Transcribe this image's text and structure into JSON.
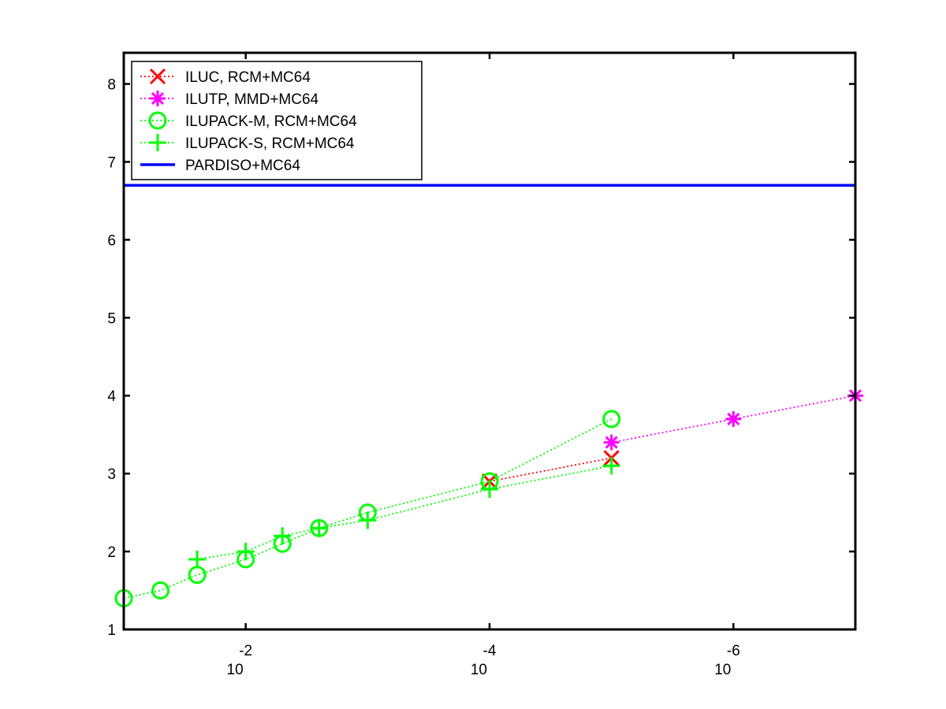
{
  "chart_data": {
    "type": "line",
    "title": "",
    "xlabel": "",
    "ylabel": "",
    "x_scale": "log",
    "x_reversed": true,
    "xlim": [
      0.1,
      1e-07
    ],
    "ylim": [
      1,
      8.4
    ],
    "grid": false,
    "legend_position": "top-left",
    "x_ticks": [
      {
        "value": 0.01,
        "base": "10",
        "exp": "-2"
      },
      {
        "value": 0.0001,
        "base": "10",
        "exp": "-4"
      },
      {
        "value": 1e-06,
        "base": "10",
        "exp": "-6"
      }
    ],
    "y_ticks": [
      {
        "value": 1,
        "label": "1"
      },
      {
        "value": 2,
        "label": "2"
      },
      {
        "value": 3,
        "label": "3"
      },
      {
        "value": 4,
        "label": "4"
      },
      {
        "value": 5,
        "label": "5"
      },
      {
        "value": 6,
        "label": "6"
      },
      {
        "value": 7,
        "label": "7"
      },
      {
        "value": 8,
        "label": "8"
      }
    ],
    "series": [
      {
        "name": "ILUC, RCM+MC64",
        "color": "#ff0000",
        "marker": "x",
        "line_style": "dotted",
        "points": [
          {
            "x": 0.0001,
            "y": 2.9
          },
          {
            "x": 1e-05,
            "y": 3.2
          }
        ]
      },
      {
        "name": "ILUTP, MMD+MC64",
        "color": "#ff00ff",
        "marker": "star",
        "line_style": "dotted",
        "points": [
          {
            "x": 1e-05,
            "y": 3.4
          },
          {
            "x": 1e-06,
            "y": 3.7
          },
          {
            "x": 1e-07,
            "y": 4.0
          }
        ]
      },
      {
        "name": "ILUPACK-M, RCM+MC64",
        "color": "#00ff00",
        "marker": "circle",
        "line_style": "dotted",
        "points": [
          {
            "x": 0.1,
            "y": 1.4
          },
          {
            "x": 0.05,
            "y": 1.5
          },
          {
            "x": 0.025,
            "y": 1.7
          },
          {
            "x": 0.01,
            "y": 1.9
          },
          {
            "x": 0.005,
            "y": 2.1
          },
          {
            "x": 0.0025,
            "y": 2.3
          },
          {
            "x": 0.001,
            "y": 2.5
          },
          {
            "x": 0.0001,
            "y": 2.9
          },
          {
            "x": 1e-05,
            "y": 3.7
          }
        ]
      },
      {
        "name": "ILUPACK-S, RCM+MC64",
        "color": "#00ff00",
        "marker": "plus",
        "line_style": "dotted",
        "points": [
          {
            "x": 0.025,
            "y": 1.9
          },
          {
            "x": 0.01,
            "y": 2.0
          },
          {
            "x": 0.005,
            "y": 2.2
          },
          {
            "x": 0.0025,
            "y": 2.3
          },
          {
            "x": 0.001,
            "y": 2.4
          },
          {
            "x": 0.0001,
            "y": 2.8
          },
          {
            "x": 1e-05,
            "y": 3.1
          }
        ]
      },
      {
        "name": "PARDISO+MC64",
        "color": "#0000ff",
        "marker": "none",
        "line_style": "solid",
        "points": [
          {
            "x": 0.1,
            "y": 6.7
          },
          {
            "x": 1e-07,
            "y": 6.7
          }
        ]
      }
    ]
  }
}
